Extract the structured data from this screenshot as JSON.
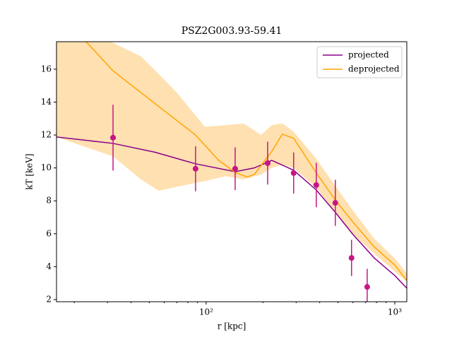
{
  "chart_data": {
    "type": "line",
    "title": "PSZ2G003.93-59.41",
    "xlabel": "r [kpc]",
    "ylabel": "kT [keV]",
    "xscale": "log",
    "xlim": [
      16.1,
      1158
    ],
    "ylim": [
      1.87,
      17.67
    ],
    "xticks": [
      {
        "value": 100,
        "label": "10²"
      },
      {
        "value": 1000,
        "label": "10³"
      }
    ],
    "xminorticks": [
      20,
      30,
      40,
      50,
      60,
      70,
      80,
      90,
      200,
      300,
      400,
      500,
      600,
      700,
      800,
      900
    ],
    "yticks": [
      2,
      4,
      6,
      8,
      10,
      12,
      14,
      16
    ],
    "legend": "upper right",
    "series": [
      {
        "name": "projected",
        "color": "#8b008b",
        "x": [
          16.1,
          32.1,
          53.7,
          87.9,
          142.5,
          179.9,
          222.9,
          291,
          383.6,
          484,
          601,
          778,
          1000,
          1158
        ],
        "values": [
          11.88,
          11.49,
          10.95,
          10.25,
          9.77,
          10.0,
          10.46,
          9.86,
          8.66,
          7.3,
          5.95,
          4.53,
          3.46,
          2.69
        ]
      },
      {
        "name": "deprojected",
        "color": "#ffa500",
        "x": [
          23.1,
          32.1,
          53.7,
          87.9,
          116.8,
          142.5,
          164.8,
          179.9,
          222.9,
          253.5,
          291,
          383.6,
          484,
          601,
          778,
          1000,
          1158
        ],
        "values": [
          17.67,
          15.9,
          13.9,
          12.0,
          10.45,
          9.73,
          9.45,
          9.6,
          11.0,
          12.05,
          11.8,
          9.7,
          8.05,
          6.7,
          5.2,
          4.1,
          3.16
        ]
      }
    ],
    "band": {
      "color": "#ffe0b0",
      "x": [
        16.1,
        32.1,
        45.2,
        56.1,
        69.6,
        98.3,
        127.3,
        158,
        195.9,
        222.9,
        253.8,
        291,
        383.6,
        484,
        601,
        778,
        1000,
        1158
      ],
      "upper": [
        19,
        17.6,
        16.77,
        15.7,
        14.6,
        12.5,
        12.6,
        12.7,
        12.0,
        12.6,
        12.7,
        12.2,
        10.56,
        8.9,
        7.4,
        5.7,
        4.5,
        3.6
      ],
      "lower": [
        11.88,
        10.7,
        9.3,
        8.6,
        8.85,
        9.2,
        9.5,
        9.3,
        9.6,
        10.0,
        10.2,
        10.0,
        8.8,
        7.3,
        5.95,
        4.8,
        3.7,
        3.1
      ]
    },
    "points": {
      "color": "#c71585",
      "x": [
        32.1,
        87.9,
        142.5,
        211.9,
        291,
        383.6,
        484,
        590,
        714
      ],
      "values": [
        11.84,
        9.95,
        9.95,
        10.29,
        9.69,
        8.96,
        7.88,
        4.53,
        2.77
      ],
      "yerr": [
        2.0,
        1.37,
        1.3,
        1.3,
        1.25,
        1.35,
        1.4,
        1.1,
        1.1
      ]
    }
  }
}
